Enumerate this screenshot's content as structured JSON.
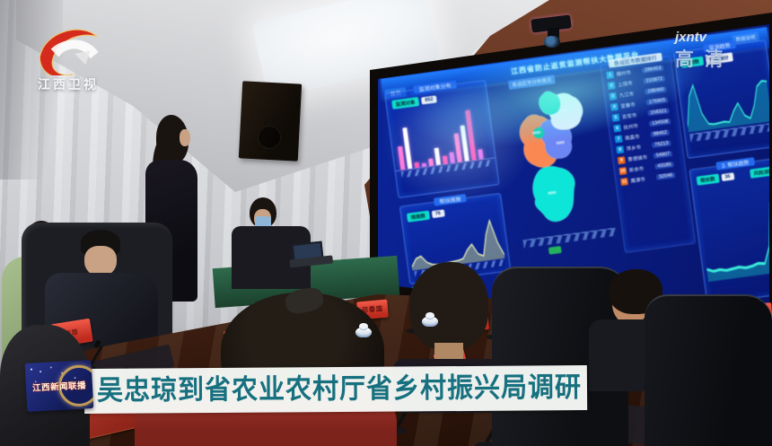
{
  "broadcast": {
    "channel_name": "江西卫视",
    "watermark": "jxntv",
    "hd_label": "高清",
    "caption_badge": "江西新闻联播",
    "headline": "吴忠琼到省农业农村厅省乡村振兴局调研"
  },
  "colors": {
    "accent_red": "#d42b1e",
    "caption_text": "#17707f",
    "caption_bg": "#f6f8f5",
    "badge_blue": "#1a2a73",
    "dashboard_bg": "#0a2294",
    "panel_border": "#6ea0ff",
    "teal_accent": "#1fd8c8",
    "bar_pink": "#ff7ad2",
    "bar_magenta": "#ff4fb2",
    "area_yellow": "#eef6c0",
    "green_button": "#2fae62"
  },
  "dashboard": {
    "title": "江西省防止返贫监测帮扶大数据平台",
    "tabs": [
      "首页",
      "监测"
    ],
    "header_link": "数据说明",
    "map_subtitle": "各设区市分布情况",
    "left_top_panel": {
      "title": "监测对象分布",
      "legend_badge": "监测对象",
      "legend_value": "852"
    },
    "left_bottom_panel": {
      "title": "帮扶措施",
      "legend_badge": "措施数",
      "legend_value": "76"
    },
    "ranking_panel": {
      "title": "各设区市数据排行",
      "rows": [
        {
          "rank": "1",
          "name": "赣州市",
          "value": "286453"
        },
        {
          "rank": "2",
          "name": "上饶市",
          "value": "215872"
        },
        {
          "rank": "3",
          "name": "九江市",
          "value": "198460"
        },
        {
          "rank": "4",
          "name": "宜春市",
          "value": "176905"
        },
        {
          "rank": "5",
          "name": "吉安市",
          "value": "158321"
        },
        {
          "rank": "6",
          "name": "抚州市",
          "value": "134508"
        },
        {
          "rank": "7",
          "name": "南昌市",
          "value": "98462"
        },
        {
          "rank": "8",
          "name": "萍乡市",
          "value": "76213"
        },
        {
          "rank": "9",
          "name": "景德镇市",
          "value": "54907"
        },
        {
          "rank": "10",
          "name": "新余市",
          "value": "43185"
        },
        {
          "rank": "11",
          "name": "鹰潭市",
          "value": "32046"
        }
      ]
    },
    "right_top_panel": {
      "title": "监测趋势",
      "legend_badge": "监测数",
      "legend_label": "户数统计"
    },
    "right_bottom_panel": {
      "title": "3. 帮扶趋势",
      "legend_a": "帮扶数",
      "legend_value": "36",
      "legend_b": "风险消除"
    }
  },
  "scene": {
    "placards": [
      {
        "name": "张珍"
      },
      {
        "name": "侯绍华"
      },
      {
        "name": "邓春国"
      },
      {
        "name": "刘明"
      }
    ]
  },
  "chart_data": [
    {
      "id": "city-bar",
      "type": "bar",
      "panel": "left-top",
      "categories": [
        "南昌",
        "九江",
        "景德镇",
        "萍乡",
        "新余",
        "鹰潭",
        "赣州",
        "吉安",
        "宜春",
        "抚州",
        "上饶",
        "其他"
      ],
      "values": [
        42,
        74,
        10,
        7,
        13,
        30,
        15,
        20,
        52,
        64,
        90,
        18
      ],
      "bar_colors_cycle": [
        "#ff7ad2",
        "#ffffff",
        "#ff4fb2",
        "#d86ee8"
      ],
      "ylim": [
        0,
        100
      ],
      "grid": false,
      "legend_position": "top"
    },
    {
      "id": "area-yellow",
      "type": "area",
      "panel": "left-bottom",
      "values": [
        8,
        26,
        30,
        14,
        8,
        6,
        6,
        7,
        8,
        9,
        12,
        30,
        42,
        18,
        12,
        60,
        90,
        38,
        8
      ],
      "line_color": "#eef6c0",
      "fill_color": "rgba(222,236,152,0.45)",
      "ylim": [
        0,
        100
      ]
    },
    {
      "id": "area-teal-top",
      "type": "area",
      "panel": "right-top",
      "values": [
        10,
        60,
        78,
        28,
        10,
        8,
        9,
        10,
        8,
        26,
        38,
        16,
        10,
        30,
        62,
        70,
        68
      ],
      "line_color": "#48e8d8",
      "fill_color": "rgba(40,220,200,0.35)",
      "ylim": [
        0,
        100
      ]
    },
    {
      "id": "area-teal-bottom",
      "type": "area",
      "panel": "right-bottom",
      "values": [
        14,
        11,
        12,
        10,
        11,
        12,
        10,
        11,
        13,
        12,
        30,
        78,
        88,
        84
      ],
      "line_color": "#48e8d8",
      "fill_color": "rgba(40,220,200,0.35)",
      "ylim": [
        0,
        100
      ]
    },
    {
      "id": "province-map",
      "type": "map",
      "panel": "center",
      "region_colors": {
        "north": "#2fd9c4",
        "northeast": "#f2f6fc",
        "west": "#f08a5a",
        "center": "#6f86e8",
        "south": "#1fe0d4",
        "patch": "#21c9a8"
      }
    }
  ]
}
